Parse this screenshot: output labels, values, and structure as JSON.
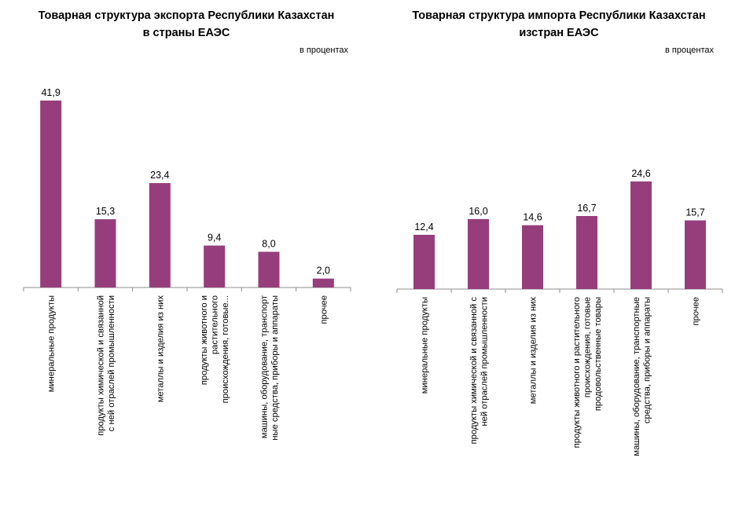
{
  "chart_data": [
    {
      "type": "bar",
      "title": "Товарная структура экспорта Республики Казахстан в страны ЕАЭС",
      "title_lines": [
        "Товарная структура экспорта Республики Казахстан",
        "в страны ЕАЭС"
      ],
      "unit_label": "в процентах",
      "categories": [
        "минеральные продукты",
        "продукты химической и связанной с ней отраслей промышленности",
        "металлы и изделия из них",
        "продукты животного и растительного происхождения, готовые...",
        "машины, оборудование, транспортные средства, приборы и аппараты",
        "прочее"
      ],
      "category_lines": [
        [
          "минеральные продукты"
        ],
        [
          "продукты химической и связанной",
          "с ней отраслей промышленности"
        ],
        [
          "металлы и изделия из них"
        ],
        [
          "продукты животного и",
          "растительного",
          "происхождения, готовые..."
        ],
        [
          "машины, оборудование, транспорт",
          "ные средства, приборы и аппараты"
        ],
        [
          "прочее"
        ]
      ],
      "values": [
        41.9,
        15.3,
        23.4,
        9.4,
        8.0,
        2.0
      ],
      "value_labels": [
        "41,9",
        "15,3",
        "23,4",
        "9,4",
        "8,0",
        "2,0"
      ],
      "ylim": [
        0,
        41.9
      ],
      "grid": false,
      "bar_color": "#963e7c"
    },
    {
      "type": "bar",
      "title": "Товарная структура импорта Республики Казахстан изстран ЕАЭС",
      "title_lines": [
        "Товарная структура импорта Республики Казахстан",
        "изстран ЕАЭС"
      ],
      "unit_label": "в процентах",
      "categories": [
        "минеральные продукты",
        "продукты химической и связанной с ней отраслей промышленности",
        "металлы и изделия из них",
        "продукты животного и растительного происхождения, готовые продовольственные товары",
        "машины, оборудование, транспортные средства, приборы и аппараты",
        "прочее"
      ],
      "category_lines": [
        [
          "минеральные продукты"
        ],
        [
          "продукты химической и связанной с",
          "ней отраслей промышленности"
        ],
        [
          "металлы и изделия из них"
        ],
        [
          "продукты животного и растительного",
          "происхождения, готовые",
          "продовольственные товары"
        ],
        [
          "машины, оборудование, транспортные",
          "средства, приборы и аппараты"
        ],
        [
          "прочее"
        ]
      ],
      "values": [
        12.4,
        16.0,
        14.6,
        16.7,
        24.6,
        15.7
      ],
      "value_labels": [
        "12,4",
        "16,0",
        "14,6",
        "16,7",
        "24,6",
        "15,7"
      ],
      "ylim": [
        0,
        24.6
      ],
      "grid": false,
      "bar_color": "#963e7c"
    }
  ]
}
